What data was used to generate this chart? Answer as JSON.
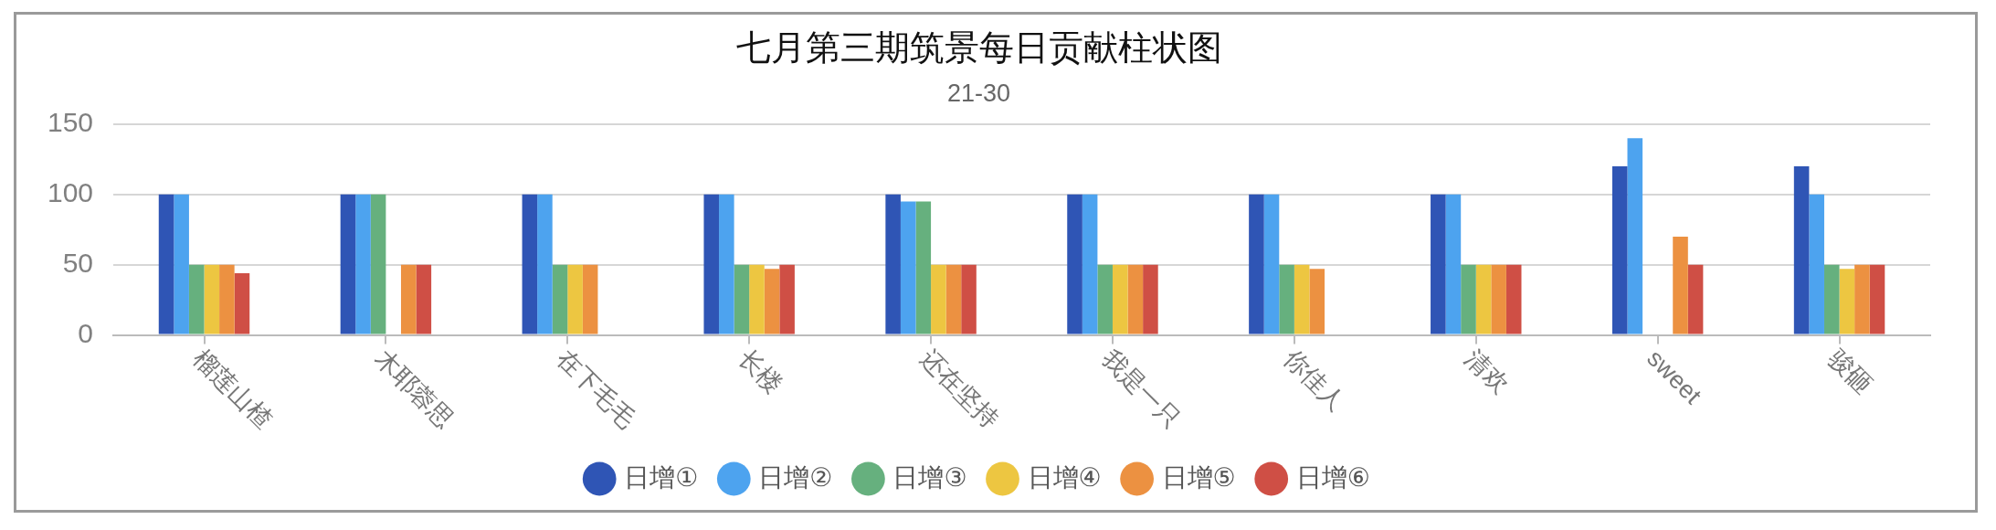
{
  "chart_data": {
    "type": "bar",
    "title": "七月第三期筑景每日贡献柱状图",
    "subtitle": "21-30",
    "categories": [
      "榴莲山楂",
      "木耶蓉思",
      "在下毛毛",
      "长楼",
      "还在坚持",
      "我是一只",
      "你佳人",
      "清欢",
      "sweet",
      "骏砸"
    ],
    "series": [
      {
        "name": "日增①",
        "color": "#2f55b5",
        "values": [
          100,
          100,
          100,
          100,
          100,
          100,
          100,
          100,
          120,
          120
        ]
      },
      {
        "name": "日增②",
        "color": "#4da3ef",
        "values": [
          100,
          100,
          100,
          100,
          95,
          100,
          100,
          100,
          140,
          100
        ]
      },
      {
        "name": "日增③",
        "color": "#66b07e",
        "values": [
          50,
          100,
          50,
          50,
          95,
          50,
          50,
          50,
          null,
          50
        ]
      },
      {
        "name": "日增④",
        "color": "#edc641",
        "values": [
          50,
          null,
          50,
          50,
          50,
          50,
          50,
          50,
          null,
          47
        ]
      },
      {
        "name": "日增⑤",
        "color": "#ec9141",
        "values": [
          50,
          50,
          50,
          47,
          50,
          50,
          47,
          50,
          70,
          50
        ]
      },
      {
        "name": "日增⑥",
        "color": "#cf4f45",
        "values": [
          44,
          50,
          null,
          50,
          50,
          50,
          null,
          50,
          50,
          50
        ]
      }
    ],
    "ylim": [
      0,
      150
    ],
    "yticks": [
      0,
      50,
      100,
      150
    ],
    "grid": "y",
    "legend": "bottom"
  }
}
